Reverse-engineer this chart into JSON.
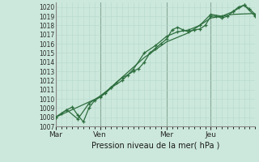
{
  "xlabel": "Pression niveau de la mer( hPa )",
  "bg_color": "#cce8dc",
  "grid_color_minor": "#b8d8cc",
  "grid_color_major": "#88aa99",
  "line_color": "#2d6e3e",
  "ylim": [
    1007,
    1020.5
  ],
  "yticks": [
    1007,
    1008,
    1009,
    1010,
    1011,
    1012,
    1013,
    1014,
    1015,
    1016,
    1017,
    1018,
    1019,
    1020
  ],
  "xtick_labels": [
    "Mar",
    "Ven",
    "Mer",
    "Jeu"
  ],
  "xtick_positions": [
    0,
    48,
    120,
    168
  ],
  "total_hours": 216,
  "line1_x": [
    0,
    6,
    12,
    18,
    24,
    30,
    36,
    42,
    48,
    54,
    60,
    66,
    72,
    78,
    84,
    90,
    96,
    102,
    108,
    114,
    120,
    126,
    132,
    138,
    144,
    150,
    156,
    162,
    168,
    174,
    180,
    186,
    192,
    198,
    204,
    210,
    216
  ],
  "line1_y": [
    1008.0,
    1008.4,
    1008.8,
    1009.1,
    1008.2,
    1007.5,
    1009.0,
    1009.8,
    1010.2,
    1010.6,
    1011.2,
    1011.8,
    1012.3,
    1012.6,
    1013.0,
    1013.3,
    1014.0,
    1015.0,
    1015.5,
    1016.0,
    1016.5,
    1017.5,
    1017.8,
    1017.5,
    1017.3,
    1017.5,
    1017.6,
    1018.0,
    1019.0,
    1019.0,
    1018.8,
    1019.0,
    1019.5,
    1020.0,
    1020.2,
    1019.8,
    1019.2
  ],
  "line2_x": [
    0,
    12,
    24,
    36,
    48,
    60,
    72,
    84,
    96,
    108,
    120,
    132,
    144,
    156,
    168,
    180,
    192,
    204,
    216
  ],
  "line2_y": [
    1008.0,
    1008.8,
    1007.8,
    1009.5,
    1010.3,
    1011.2,
    1012.0,
    1013.2,
    1015.0,
    1015.8,
    1016.8,
    1017.3,
    1017.5,
    1018.0,
    1019.2,
    1019.0,
    1019.5,
    1020.2,
    1019.0
  ],
  "line3_x": [
    0,
    48,
    96,
    120,
    144,
    168,
    192,
    216
  ],
  "line3_y": [
    1008.0,
    1010.2,
    1014.5,
    1016.2,
    1017.2,
    1018.8,
    1019.2,
    1019.3
  ]
}
